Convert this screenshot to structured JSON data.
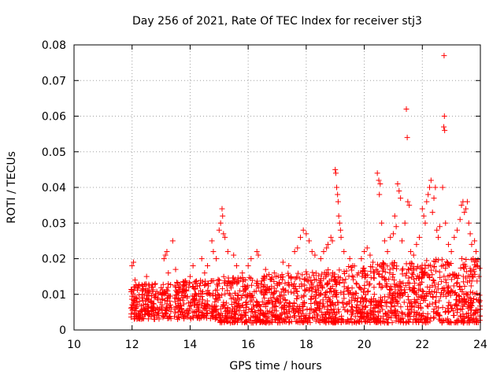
{
  "chart_data": {
    "type": "scatter",
    "title": "Day 256 of 2021, Rate Of TEC Index for receiver stj3",
    "xlabel": "GPS time / hours",
    "ylabel": "ROTI / TECUs",
    "xlim": [
      10,
      24
    ],
    "ylim": [
      0,
      0.08
    ],
    "x_ticks": [
      10,
      12,
      14,
      16,
      18,
      20,
      22,
      24
    ],
    "x_tick_labels": [
      "10",
      "12",
      "14",
      "16",
      "18",
      "20",
      "22",
      "24"
    ],
    "y_ticks": [
      0,
      0.01,
      0.02,
      0.03,
      0.04,
      0.05,
      0.06,
      0.07,
      0.08
    ],
    "y_tick_labels": [
      "0",
      "0.01",
      "0.02",
      "0.03",
      "0.04",
      "0.05",
      "0.06",
      "0.07",
      "0.08"
    ],
    "grid": true,
    "marker": "+",
    "color": "#ff0000",
    "series": [
      {
        "name": "ROTI",
        "points": [
          [
            12.0,
            0.018
          ],
          [
            12.05,
            0.019
          ],
          [
            12.1,
            0.014
          ],
          [
            12.2,
            0.012
          ],
          [
            12.5,
            0.015
          ],
          [
            12.8,
            0.013
          ],
          [
            13.1,
            0.02
          ],
          [
            13.15,
            0.021
          ],
          [
            13.2,
            0.022
          ],
          [
            13.25,
            0.016
          ],
          [
            13.4,
            0.025
          ],
          [
            13.5,
            0.017
          ],
          [
            13.6,
            0.012
          ],
          [
            14.0,
            0.015
          ],
          [
            14.1,
            0.018
          ],
          [
            14.2,
            0.013
          ],
          [
            14.4,
            0.02
          ],
          [
            14.5,
            0.016
          ],
          [
            14.6,
            0.018
          ],
          [
            14.75,
            0.025
          ],
          [
            14.8,
            0.022
          ],
          [
            14.9,
            0.02
          ],
          [
            15.0,
            0.028
          ],
          [
            15.05,
            0.03
          ],
          [
            15.1,
            0.034
          ],
          [
            15.12,
            0.032
          ],
          [
            15.15,
            0.027
          ],
          [
            15.2,
            0.026
          ],
          [
            15.3,
            0.022
          ],
          [
            15.5,
            0.021
          ],
          [
            15.6,
            0.018
          ],
          [
            15.8,
            0.016
          ],
          [
            16.0,
            0.018
          ],
          [
            16.1,
            0.02
          ],
          [
            16.3,
            0.022
          ],
          [
            16.35,
            0.021
          ],
          [
            16.6,
            0.017
          ],
          [
            16.9,
            0.016
          ],
          [
            17.2,
            0.019
          ],
          [
            17.4,
            0.018
          ],
          [
            17.6,
            0.022
          ],
          [
            17.7,
            0.023
          ],
          [
            17.8,
            0.026
          ],
          [
            17.9,
            0.028
          ],
          [
            18.0,
            0.027
          ],
          [
            18.1,
            0.025
          ],
          [
            18.2,
            0.022
          ],
          [
            18.3,
            0.021
          ],
          [
            18.5,
            0.02
          ],
          [
            18.6,
            0.022
          ],
          [
            18.7,
            0.023
          ],
          [
            18.75,
            0.024
          ],
          [
            18.85,
            0.026
          ],
          [
            18.9,
            0.025
          ],
          [
            19.0,
            0.045
          ],
          [
            19.02,
            0.044
          ],
          [
            19.05,
            0.04
          ],
          [
            19.08,
            0.038
          ],
          [
            19.1,
            0.036
          ],
          [
            19.12,
            0.032
          ],
          [
            19.15,
            0.03
          ],
          [
            19.18,
            0.028
          ],
          [
            19.2,
            0.026
          ],
          [
            19.3,
            0.022
          ],
          [
            19.5,
            0.02
          ],
          [
            19.6,
            0.018
          ],
          [
            19.8,
            0.016
          ],
          [
            19.9,
            0.02
          ],
          [
            20.0,
            0.022
          ],
          [
            20.1,
            0.023
          ],
          [
            20.2,
            0.021
          ],
          [
            20.3,
            0.019
          ],
          [
            20.45,
            0.044
          ],
          [
            20.5,
            0.042
          ],
          [
            20.55,
            0.041
          ],
          [
            20.52,
            0.038
          ],
          [
            20.6,
            0.03
          ],
          [
            20.7,
            0.025
          ],
          [
            20.8,
            0.022
          ],
          [
            20.9,
            0.026
          ],
          [
            21.0,
            0.027
          ],
          [
            21.05,
            0.032
          ],
          [
            21.1,
            0.029
          ],
          [
            21.15,
            0.041
          ],
          [
            21.2,
            0.039
          ],
          [
            21.25,
            0.037
          ],
          [
            21.3,
            0.025
          ],
          [
            21.4,
            0.03
          ],
          [
            21.45,
            0.062
          ],
          [
            21.48,
            0.054
          ],
          [
            21.5,
            0.036
          ],
          [
            21.55,
            0.035
          ],
          [
            21.6,
            0.022
          ],
          [
            21.7,
            0.021
          ],
          [
            21.8,
            0.024
          ],
          [
            21.9,
            0.026
          ],
          [
            22.0,
            0.034
          ],
          [
            22.05,
            0.032
          ],
          [
            22.1,
            0.03
          ],
          [
            22.15,
            0.036
          ],
          [
            22.2,
            0.038
          ],
          [
            22.25,
            0.04
          ],
          [
            22.3,
            0.042
          ],
          [
            22.35,
            0.033
          ],
          [
            22.4,
            0.037
          ],
          [
            22.45,
            0.04
          ],
          [
            22.5,
            0.028
          ],
          [
            22.55,
            0.026
          ],
          [
            22.6,
            0.029
          ],
          [
            22.7,
            0.04
          ],
          [
            22.75,
            0.077
          ],
          [
            22.76,
            0.06
          ],
          [
            22.74,
            0.057
          ],
          [
            22.77,
            0.056
          ],
          [
            22.8,
            0.03
          ],
          [
            22.9,
            0.024
          ],
          [
            23.0,
            0.022
          ],
          [
            23.1,
            0.026
          ],
          [
            23.2,
            0.028
          ],
          [
            23.3,
            0.031
          ],
          [
            23.35,
            0.035
          ],
          [
            23.4,
            0.036
          ],
          [
            23.45,
            0.033
          ],
          [
            23.5,
            0.034
          ],
          [
            23.55,
            0.036
          ],
          [
            23.6,
            0.03
          ],
          [
            23.65,
            0.027
          ],
          [
            23.7,
            0.024
          ],
          [
            23.75,
            0.02
          ],
          [
            23.8,
            0.025
          ],
          [
            23.85,
            0.022
          ],
          [
            23.9,
            0.018
          ],
          [
            23.95,
            0.015
          ]
        ],
        "dense_bands": [
          {
            "start": 11.95,
            "end": 13.35,
            "low": 0.003,
            "high": 0.013,
            "count": 230
          },
          {
            "start": 13.45,
            "end": 14.95,
            "low": 0.003,
            "high": 0.014,
            "count": 230
          },
          {
            "start": 14.95,
            "end": 16.45,
            "low": 0.002,
            "high": 0.015,
            "count": 250
          },
          {
            "start": 16.45,
            "end": 17.95,
            "low": 0.002,
            "high": 0.016,
            "count": 250
          },
          {
            "start": 17.95,
            "end": 19.45,
            "low": 0.002,
            "high": 0.017,
            "count": 250
          },
          {
            "start": 19.45,
            "end": 20.45,
            "low": 0.002,
            "high": 0.018,
            "count": 170
          },
          {
            "start": 20.45,
            "end": 22.0,
            "low": 0.002,
            "high": 0.019,
            "count": 280
          },
          {
            "start": 22.0,
            "end": 24.0,
            "low": 0.002,
            "high": 0.02,
            "count": 340
          }
        ]
      }
    ]
  }
}
